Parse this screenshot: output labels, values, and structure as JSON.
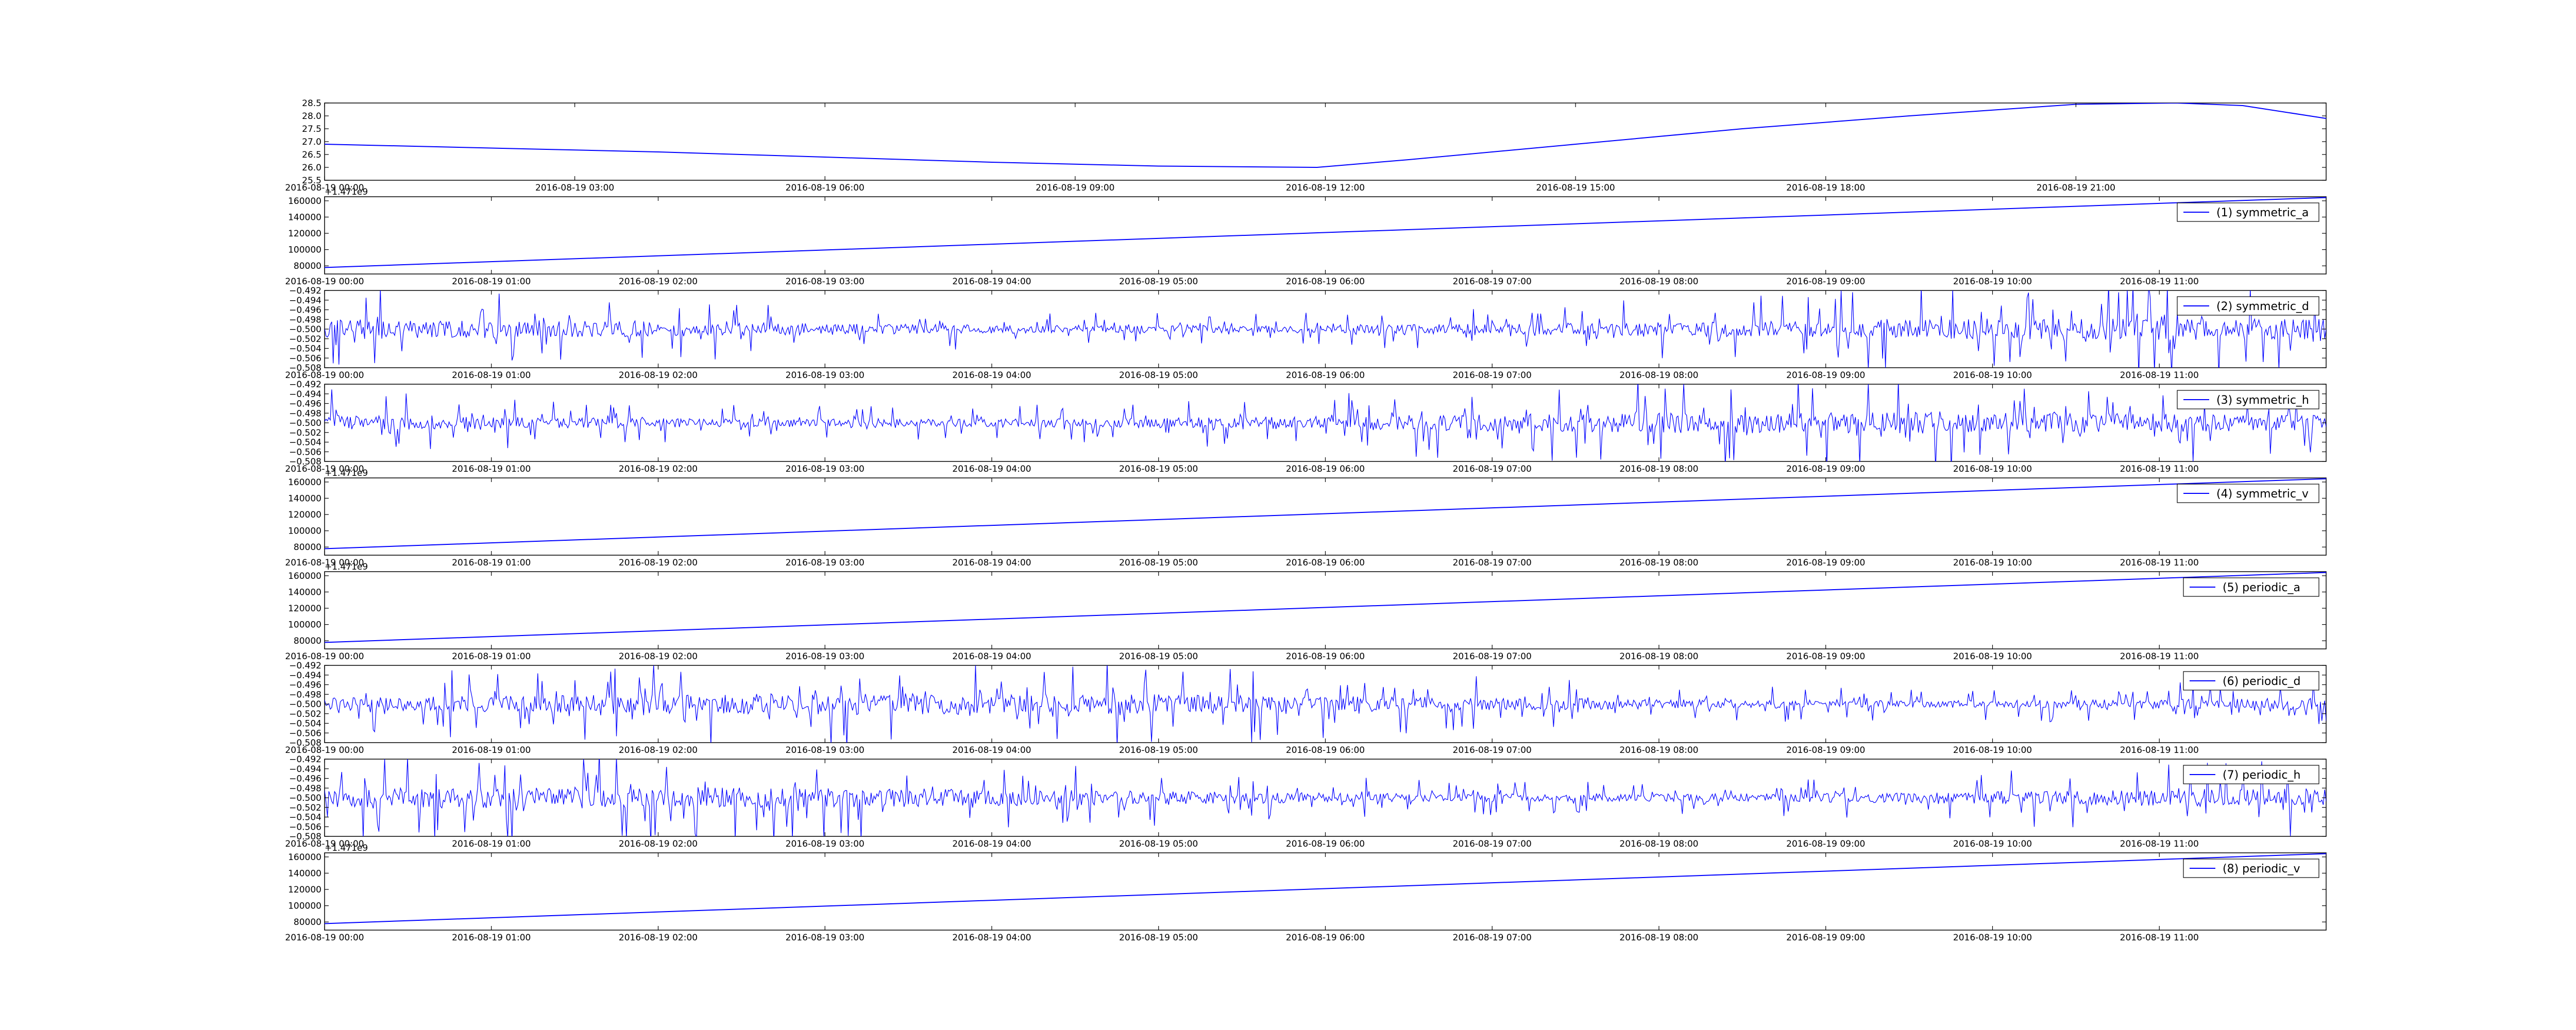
{
  "figure": {
    "line_color": "#0000ff",
    "axes_color": "#000000",
    "background": "#ffffff"
  },
  "chart_data": [
    {
      "id": "temperature",
      "type": "line",
      "legend": null,
      "offset_text": "",
      "ylim": [
        25.5,
        28.5
      ],
      "y_ticks": [
        {
          "value": 25.5,
          "label": "25.5"
        },
        {
          "value": 26.0,
          "label": "26.0"
        },
        {
          "value": 26.5,
          "label": "26.5"
        },
        {
          "value": 27.0,
          "label": "27.0"
        },
        {
          "value": 27.5,
          "label": "27.5"
        },
        {
          "value": 28.0,
          "label": "28.0"
        },
        {
          "value": 28.5,
          "label": "28.5"
        }
      ],
      "x_tick_labels": [
        "2016-08-19 00:00",
        "2016-08-19 03:00",
        "2016-08-19 06:00",
        "2016-08-19 09:00",
        "2016-08-19 12:00",
        "2016-08-19 15:00",
        "2016-08-19 18:00",
        "2016-08-19 21:00"
      ],
      "x_tick_hours": [
        0,
        3,
        6,
        9,
        12,
        15,
        18,
        21
      ],
      "x_hours_range": [
        0,
        24
      ],
      "series": [
        {
          "x_hours": [
            0,
            2,
            4,
            6,
            8,
            10,
            11.9,
            13,
            15,
            17,
            19,
            21,
            22.2,
            23,
            24
          ],
          "y": [
            26.9,
            26.75,
            26.6,
            26.4,
            26.2,
            26.05,
            26.0,
            26.3,
            26.9,
            27.5,
            28.0,
            28.45,
            28.5,
            28.4,
            27.9
          ]
        }
      ]
    },
    {
      "id": "symmetric_a",
      "type": "line",
      "legend": "(1) symmetric_a",
      "offset_text": "+1.471e9",
      "ylim": [
        70000,
        165000
      ],
      "y_ticks": [
        {
          "value": 80000,
          "label": "80000"
        },
        {
          "value": 100000,
          "label": "100000"
        },
        {
          "value": 120000,
          "label": "120000"
        },
        {
          "value": 140000,
          "label": "140000"
        },
        {
          "value": 160000,
          "label": "160000"
        }
      ],
      "x_tick_labels": [
        "2016-08-19 00:00",
        "2016-08-19 01:00",
        "2016-08-19 02:00",
        "2016-08-19 03:00",
        "2016-08-19 04:00",
        "2016-08-19 05:00",
        "2016-08-19 06:00",
        "2016-08-19 07:00",
        "2016-08-19 08:00",
        "2016-08-19 09:00",
        "2016-08-19 10:00",
        "2016-08-19 11:00"
      ],
      "x_tick_hours": [
        0,
        1,
        2,
        3,
        4,
        5,
        6,
        7,
        8,
        9,
        10,
        11
      ],
      "x_hours_range": [
        0,
        12
      ],
      "series": [
        {
          "x_hours": [
            0,
            12
          ],
          "y": [
            78000,
            164000
          ]
        }
      ]
    },
    {
      "id": "symmetric_d",
      "type": "line",
      "legend": "(2) symmetric_d",
      "offset_text": "",
      "ylim": [
        -0.508,
        -0.492
      ],
      "y_ticks": [
        {
          "value": -0.508,
          "label": "−0.508"
        },
        {
          "value": -0.506,
          "label": "−0.506"
        },
        {
          "value": -0.504,
          "label": "−0.504"
        },
        {
          "value": -0.502,
          "label": "−0.502"
        },
        {
          "value": -0.5,
          "label": "−0.500"
        },
        {
          "value": -0.498,
          "label": "−0.498"
        },
        {
          "value": -0.496,
          "label": "−0.496"
        },
        {
          "value": -0.494,
          "label": "−0.494"
        },
        {
          "value": -0.492,
          "label": "−0.492"
        }
      ],
      "x_tick_labels": [
        "2016-08-19 00:00",
        "2016-08-19 01:00",
        "2016-08-19 02:00",
        "2016-08-19 03:00",
        "2016-08-19 04:00",
        "2016-08-19 05:00",
        "2016-08-19 06:00",
        "2016-08-19 07:00",
        "2016-08-19 08:00",
        "2016-08-19 09:00",
        "2016-08-19 10:00",
        "2016-08-19 11:00"
      ],
      "x_tick_hours": [
        0,
        1,
        2,
        3,
        4,
        5,
        6,
        7,
        8,
        9,
        10,
        11
      ],
      "x_hours_range": [
        0,
        12
      ],
      "series": [
        {
          "noise_center": -0.5,
          "noise_amplitude": 0.007,
          "n_points": 1400,
          "seed": 2
        }
      ]
    },
    {
      "id": "symmetric_h",
      "type": "line",
      "legend": "(3) symmetric_h",
      "offset_text": "",
      "ylim": [
        -0.508,
        -0.492
      ],
      "y_ticks": [
        {
          "value": -0.508,
          "label": "−0.508"
        },
        {
          "value": -0.506,
          "label": "−0.506"
        },
        {
          "value": -0.504,
          "label": "−0.504"
        },
        {
          "value": -0.502,
          "label": "−0.502"
        },
        {
          "value": -0.5,
          "label": "−0.500"
        },
        {
          "value": -0.498,
          "label": "−0.498"
        },
        {
          "value": -0.496,
          "label": "−0.496"
        },
        {
          "value": -0.494,
          "label": "−0.494"
        },
        {
          "value": -0.492,
          "label": "−0.492"
        }
      ],
      "x_tick_labels": [
        "2016-08-19 00:00",
        "2016-08-19 01:00",
        "2016-08-19 02:00",
        "2016-08-19 03:00",
        "2016-08-19 04:00",
        "2016-08-19 05:00",
        "2016-08-19 06:00",
        "2016-08-19 07:00",
        "2016-08-19 08:00",
        "2016-08-19 09:00",
        "2016-08-19 10:00",
        "2016-08-19 11:00"
      ],
      "x_tick_hours": [
        0,
        1,
        2,
        3,
        4,
        5,
        6,
        7,
        8,
        9,
        10,
        11
      ],
      "x_hours_range": [
        0,
        12
      ],
      "series": [
        {
          "noise_center": -0.5,
          "noise_amplitude": 0.007,
          "n_points": 1400,
          "seed": 3
        }
      ]
    },
    {
      "id": "symmetric_v",
      "type": "line",
      "legend": "(4) symmetric_v",
      "offset_text": "+1.471e9",
      "ylim": [
        70000,
        165000
      ],
      "y_ticks": [
        {
          "value": 80000,
          "label": "80000"
        },
        {
          "value": 100000,
          "label": "100000"
        },
        {
          "value": 120000,
          "label": "120000"
        },
        {
          "value": 140000,
          "label": "140000"
        },
        {
          "value": 160000,
          "label": "160000"
        }
      ],
      "x_tick_labels": [
        "2016-08-19 00:00",
        "2016-08-19 01:00",
        "2016-08-19 02:00",
        "2016-08-19 03:00",
        "2016-08-19 04:00",
        "2016-08-19 05:00",
        "2016-08-19 06:00",
        "2016-08-19 07:00",
        "2016-08-19 08:00",
        "2016-08-19 09:00",
        "2016-08-19 10:00",
        "2016-08-19 11:00"
      ],
      "x_tick_hours": [
        0,
        1,
        2,
        3,
        4,
        5,
        6,
        7,
        8,
        9,
        10,
        11
      ],
      "x_hours_range": [
        0,
        12
      ],
      "series": [
        {
          "x_hours": [
            0,
            12
          ],
          "y": [
            78000,
            164000
          ]
        }
      ]
    },
    {
      "id": "periodic_a",
      "type": "line",
      "legend": "(5) periodic_a",
      "offset_text": "+1.471e9",
      "ylim": [
        70000,
        165000
      ],
      "y_ticks": [
        {
          "value": 80000,
          "label": "80000"
        },
        {
          "value": 100000,
          "label": "100000"
        },
        {
          "value": 120000,
          "label": "120000"
        },
        {
          "value": 140000,
          "label": "140000"
        },
        {
          "value": 160000,
          "label": "160000"
        }
      ],
      "x_tick_labels": [
        "2016-08-19 00:00",
        "2016-08-19 01:00",
        "2016-08-19 02:00",
        "2016-08-19 03:00",
        "2016-08-19 04:00",
        "2016-08-19 05:00",
        "2016-08-19 06:00",
        "2016-08-19 07:00",
        "2016-08-19 08:00",
        "2016-08-19 09:00",
        "2016-08-19 10:00",
        "2016-08-19 11:00"
      ],
      "x_tick_hours": [
        0,
        1,
        2,
        3,
        4,
        5,
        6,
        7,
        8,
        9,
        10,
        11
      ],
      "x_hours_range": [
        0,
        12
      ],
      "series": [
        {
          "x_hours": [
            0,
            12
          ],
          "y": [
            78000,
            164000
          ]
        }
      ]
    },
    {
      "id": "periodic_d",
      "type": "line",
      "legend": "(6) periodic_d",
      "offset_text": "",
      "ylim": [
        -0.508,
        -0.492
      ],
      "y_ticks": [
        {
          "value": -0.508,
          "label": "−0.508"
        },
        {
          "value": -0.506,
          "label": "−0.506"
        },
        {
          "value": -0.504,
          "label": "−0.504"
        },
        {
          "value": -0.502,
          "label": "−0.502"
        },
        {
          "value": -0.5,
          "label": "−0.500"
        },
        {
          "value": -0.498,
          "label": "−0.498"
        },
        {
          "value": -0.496,
          "label": "−0.496"
        },
        {
          "value": -0.494,
          "label": "−0.494"
        },
        {
          "value": -0.492,
          "label": "−0.492"
        }
      ],
      "x_tick_labels": [
        "2016-08-19 00:00",
        "2016-08-19 01:00",
        "2016-08-19 02:00",
        "2016-08-19 03:00",
        "2016-08-19 04:00",
        "2016-08-19 05:00",
        "2016-08-19 06:00",
        "2016-08-19 07:00",
        "2016-08-19 08:00",
        "2016-08-19 09:00",
        "2016-08-19 10:00",
        "2016-08-19 11:00"
      ],
      "x_tick_hours": [
        0,
        1,
        2,
        3,
        4,
        5,
        6,
        7,
        8,
        9,
        10,
        11
      ],
      "x_hours_range": [
        0,
        12
      ],
      "series": [
        {
          "noise_center": -0.5,
          "noise_amplitude": 0.007,
          "n_points": 1400,
          "seed": 6
        }
      ]
    },
    {
      "id": "periodic_h",
      "type": "line",
      "legend": "(7) periodic_h",
      "offset_text": "",
      "ylim": [
        -0.508,
        -0.492
      ],
      "y_ticks": [
        {
          "value": -0.508,
          "label": "−0.508"
        },
        {
          "value": -0.506,
          "label": "−0.506"
        },
        {
          "value": -0.504,
          "label": "−0.504"
        },
        {
          "value": -0.502,
          "label": "−0.502"
        },
        {
          "value": -0.5,
          "label": "−0.500"
        },
        {
          "value": -0.498,
          "label": "−0.498"
        },
        {
          "value": -0.496,
          "label": "−0.496"
        },
        {
          "value": -0.494,
          "label": "−0.494"
        },
        {
          "value": -0.492,
          "label": "−0.492"
        }
      ],
      "x_tick_labels": [
        "2016-08-19 00:00",
        "2016-08-19 01:00",
        "2016-08-19 02:00",
        "2016-08-19 03:00",
        "2016-08-19 04:00",
        "2016-08-19 05:00",
        "2016-08-19 06:00",
        "2016-08-19 07:00",
        "2016-08-19 08:00",
        "2016-08-19 09:00",
        "2016-08-19 10:00",
        "2016-08-19 11:00"
      ],
      "x_tick_hours": [
        0,
        1,
        2,
        3,
        4,
        5,
        6,
        7,
        8,
        9,
        10,
        11
      ],
      "x_hours_range": [
        0,
        12
      ],
      "series": [
        {
          "noise_center": -0.5,
          "noise_amplitude": 0.007,
          "n_points": 1400,
          "seed": 7
        }
      ]
    },
    {
      "id": "periodic_v",
      "type": "line",
      "legend": "(8) periodic_v",
      "offset_text": "+1.471e9",
      "ylim": [
        70000,
        165000
      ],
      "y_ticks": [
        {
          "value": 80000,
          "label": "80000"
        },
        {
          "value": 100000,
          "label": "100000"
        },
        {
          "value": 120000,
          "label": "120000"
        },
        {
          "value": 140000,
          "label": "140000"
        },
        {
          "value": 160000,
          "label": "160000"
        }
      ],
      "x_tick_labels": [
        "2016-08-19 00:00",
        "2016-08-19 01:00",
        "2016-08-19 02:00",
        "2016-08-19 03:00",
        "2016-08-19 04:00",
        "2016-08-19 05:00",
        "2016-08-19 06:00",
        "2016-08-19 07:00",
        "2016-08-19 08:00",
        "2016-08-19 09:00",
        "2016-08-19 10:00",
        "2016-08-19 11:00"
      ],
      "x_tick_hours": [
        0,
        1,
        2,
        3,
        4,
        5,
        6,
        7,
        8,
        9,
        10,
        11
      ],
      "x_hours_range": [
        0,
        12
      ],
      "series": [
        {
          "x_hours": [
            0,
            12
          ],
          "y": [
            78000,
            164000
          ]
        }
      ]
    }
  ]
}
